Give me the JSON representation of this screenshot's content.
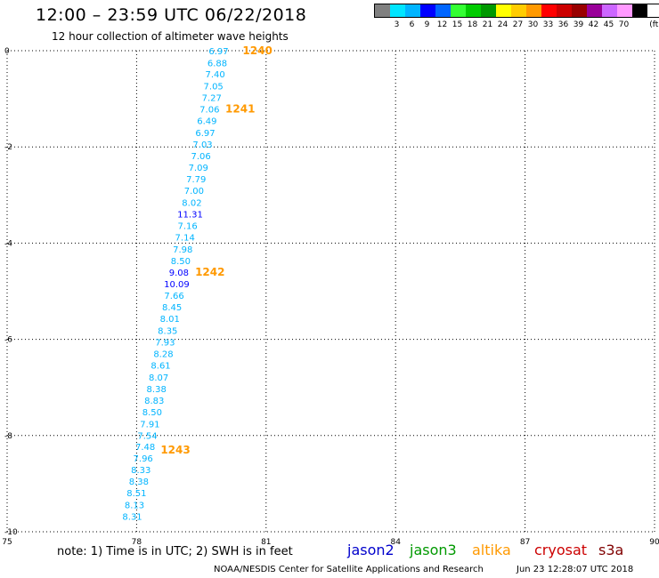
{
  "header": {
    "title": "12:00 – 23:59 UTC 06/22/2018",
    "subtitle": "12 hour collection of altimeter wave heights"
  },
  "legend": {
    "unit": "(ft)",
    "bins": [
      {
        "label": "",
        "color": "#808080"
      },
      {
        "label": "3",
        "color": "#00e5ff"
      },
      {
        "label": "6",
        "color": "#00b4ff"
      },
      {
        "label": "9",
        "color": "#0000ff"
      },
      {
        "label": "12",
        "color": "#0066ff"
      },
      {
        "label": "15",
        "color": "#33ff33"
      },
      {
        "label": "18",
        "color": "#00cc00"
      },
      {
        "label": "21",
        "color": "#009900"
      },
      {
        "label": "24",
        "color": "#ffff00"
      },
      {
        "label": "27",
        "color": "#ffcc00"
      },
      {
        "label": "30",
        "color": "#ff9900"
      },
      {
        "label": "33",
        "color": "#ff0000"
      },
      {
        "label": "36",
        "color": "#cc0000"
      },
      {
        "label": "39",
        "color": "#990000"
      },
      {
        "label": "42",
        "color": "#990099"
      },
      {
        "label": "45",
        "color": "#cc66ff"
      },
      {
        "label": "70",
        "color": "#ff99ff"
      },
      {
        "label": "",
        "color": "#000000"
      }
    ]
  },
  "map": {
    "lon_range": [
      75,
      90
    ],
    "lat_range": [
      -10,
      0
    ],
    "x_ticks": [
      "75",
      "78",
      "81",
      "84",
      "87",
      "90"
    ],
    "y_ticks": [
      "0",
      "-2",
      "-4",
      "-6",
      "-8",
      "-10"
    ],
    "observations": [
      {
        "lon": 79.9,
        "lat": 0.0,
        "swh": "6.97",
        "color": "#00b4ff"
      },
      {
        "lon": 79.87,
        "lat": -0.25,
        "swh": "6.88",
        "color": "#00b4ff"
      },
      {
        "lon": 79.82,
        "lat": -0.48,
        "swh": "7.40",
        "color": "#00b4ff"
      },
      {
        "lon": 79.78,
        "lat": -0.73,
        "swh": "7.05",
        "color": "#00b4ff"
      },
      {
        "lon": 79.74,
        "lat": -0.97,
        "swh": "7.27",
        "color": "#00b4ff"
      },
      {
        "lon": 79.69,
        "lat": -1.21,
        "swh": "7.06",
        "color": "#00b4ff"
      },
      {
        "lon": 79.63,
        "lat": -1.45,
        "swh": "6.49",
        "color": "#00b4ff"
      },
      {
        "lon": 79.59,
        "lat": -1.7,
        "swh": "6.97",
        "color": "#00b4ff"
      },
      {
        "lon": 79.53,
        "lat": -1.94,
        "swh": "7.03",
        "color": "#00b4ff"
      },
      {
        "lon": 79.49,
        "lat": -2.18,
        "swh": "7.06",
        "color": "#00b4ff"
      },
      {
        "lon": 79.43,
        "lat": -2.42,
        "swh": "7.09",
        "color": "#00b4ff"
      },
      {
        "lon": 79.38,
        "lat": -2.66,
        "swh": "7.79",
        "color": "#00b4ff"
      },
      {
        "lon": 79.33,
        "lat": -2.9,
        "swh": "7.00",
        "color": "#00b4ff"
      },
      {
        "lon": 79.28,
        "lat": -3.15,
        "swh": "8.02",
        "color": "#00b4ff"
      },
      {
        "lon": 79.24,
        "lat": -3.39,
        "swh": "11.31",
        "color": "#0000ff"
      },
      {
        "lon": 79.18,
        "lat": -3.63,
        "swh": "7.16",
        "color": "#00b4ff"
      },
      {
        "lon": 79.12,
        "lat": -3.87,
        "swh": "7.14",
        "color": "#00b4ff"
      },
      {
        "lon": 79.07,
        "lat": -4.12,
        "swh": "7.98",
        "color": "#00b4ff"
      },
      {
        "lon": 79.02,
        "lat": -4.36,
        "swh": "8.50",
        "color": "#00b4ff"
      },
      {
        "lon": 78.98,
        "lat": -4.6,
        "swh": "9.08",
        "color": "#0000ff"
      },
      {
        "lon": 78.93,
        "lat": -4.84,
        "swh": "10.09",
        "color": "#0000ff"
      },
      {
        "lon": 78.87,
        "lat": -5.08,
        "swh": "7.66",
        "color": "#00b4ff"
      },
      {
        "lon": 78.82,
        "lat": -5.32,
        "swh": "8.45",
        "color": "#00b4ff"
      },
      {
        "lon": 78.77,
        "lat": -5.56,
        "swh": "8.01",
        "color": "#00b4ff"
      },
      {
        "lon": 78.72,
        "lat": -5.81,
        "swh": "8.35",
        "color": "#00b4ff"
      },
      {
        "lon": 78.66,
        "lat": -6.05,
        "swh": "7.93",
        "color": "#00b4ff"
      },
      {
        "lon": 78.62,
        "lat": -6.29,
        "swh": "8.28",
        "color": "#00b4ff"
      },
      {
        "lon": 78.56,
        "lat": -6.53,
        "swh": "8.61",
        "color": "#00b4ff"
      },
      {
        "lon": 78.51,
        "lat": -6.78,
        "swh": "8.07",
        "color": "#00b4ff"
      },
      {
        "lon": 78.46,
        "lat": -7.02,
        "swh": "8.38",
        "color": "#00b4ff"
      },
      {
        "lon": 78.41,
        "lat": -7.26,
        "swh": "8.83",
        "color": "#00b4ff"
      },
      {
        "lon": 78.36,
        "lat": -7.5,
        "swh": "8.50",
        "color": "#00b4ff"
      },
      {
        "lon": 78.31,
        "lat": -7.75,
        "swh": "7.91",
        "color": "#00b4ff"
      },
      {
        "lon": 78.25,
        "lat": -7.99,
        "swh": "7.54",
        "color": "#00b4ff"
      },
      {
        "lon": 78.2,
        "lat": -8.23,
        "swh": "7.48",
        "color": "#00b4ff"
      },
      {
        "lon": 78.15,
        "lat": -8.47,
        "swh": "7.96",
        "color": "#00b4ff"
      },
      {
        "lon": 78.1,
        "lat": -8.71,
        "swh": "8.33",
        "color": "#00b4ff"
      },
      {
        "lon": 78.05,
        "lat": -8.95,
        "swh": "8.38",
        "color": "#00b4ff"
      },
      {
        "lon": 78.0,
        "lat": -9.19,
        "swh": "8.51",
        "color": "#00b4ff"
      },
      {
        "lon": 77.95,
        "lat": -9.44,
        "swh": "8.13",
        "color": "#00b4ff"
      },
      {
        "lon": 77.9,
        "lat": -9.68,
        "swh": "8.31",
        "color": "#00b4ff"
      }
    ],
    "time_labels": [
      {
        "lon": 80.8,
        "lat": 0.0,
        "text": "1240",
        "color": "#ff9900"
      },
      {
        "lon": 80.4,
        "lat": -1.21,
        "text": "1241",
        "color": "#ff9900"
      },
      {
        "lon": 79.7,
        "lat": -4.6,
        "text": "1242",
        "color": "#ff9900"
      },
      {
        "lon": 78.9,
        "lat": -8.3,
        "text": "1243",
        "color": "#ff9900"
      }
    ]
  },
  "footer": {
    "note": "note: 1) Time is in UTC; 2) SWH is in feet",
    "satellites": [
      {
        "name": "jason2",
        "color": "#0000cc"
      },
      {
        "name": "jason3",
        "color": "#009900"
      },
      {
        "name": "altika",
        "color": "#ff9900"
      },
      {
        "name": "cryosat",
        "color": "#cc0000"
      },
      {
        "name": "s3a",
        "color": "#800000"
      }
    ],
    "credit": "NOAA/NESDIS Center for Satellite Applications and Research",
    "timestamp": "Jun 23 12:28:07 UTC 2018"
  }
}
